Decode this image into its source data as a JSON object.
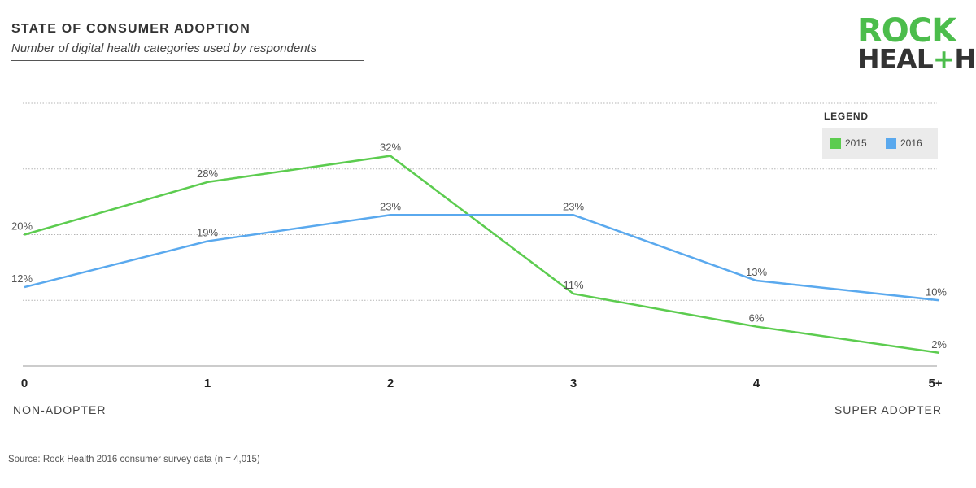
{
  "chart_data": {
    "type": "line",
    "title": "STATE OF CONSUMER ADOPTION",
    "subtitle": "Number of digital health categories used by respondents",
    "categories": [
      "0",
      "1",
      "2",
      "3",
      "4",
      "5+"
    ],
    "series": [
      {
        "name": "2015",
        "color": "#5ccc4f",
        "values": [
          20,
          28,
          32,
          11,
          6,
          2
        ],
        "labels": [
          "20%",
          "28%",
          "32%",
          "11%",
          "6%",
          "2%"
        ]
      },
      {
        "name": "2016",
        "color": "#5aa9ee",
        "values": [
          12,
          19,
          23,
          23,
          13,
          10
        ],
        "labels": [
          "12%",
          "19%",
          "23%",
          "23%",
          "13%",
          "10%"
        ]
      }
    ],
    "ylim": [
      0,
      40
    ],
    "grid": true,
    "legend_title": "LEGEND",
    "legend_position": "top-right",
    "endpoint_left": "NON-ADOPTER",
    "endpoint_right": "SUPER ADOPTER"
  },
  "source": "Source: Rock Health 2016 consumer survey data (n = 4,015)",
  "logo": {
    "top": "ROCK",
    "bottom_left": "HEAL",
    "bottom_plus": "+",
    "bottom_right": "H"
  }
}
